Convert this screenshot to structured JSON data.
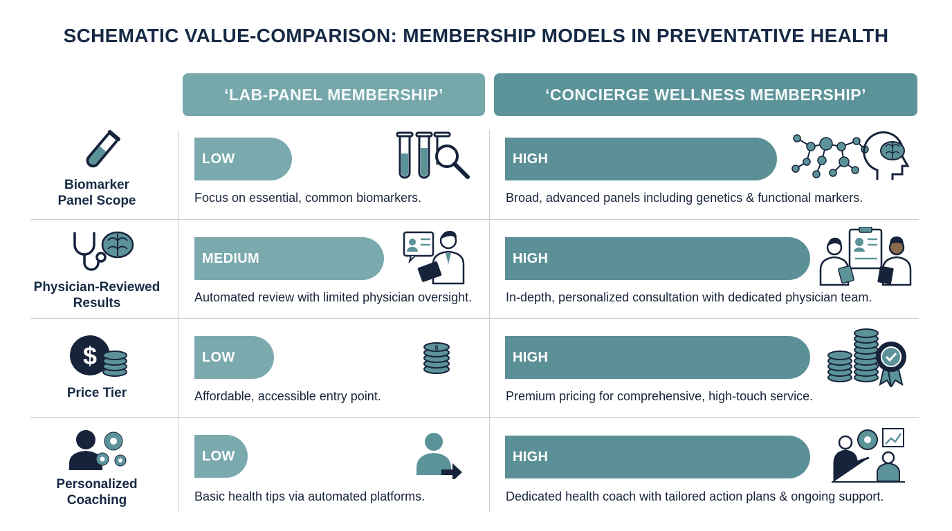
{
  "title": "SCHEMATIC VALUE-COMPARISON: MEMBERSHIP MODELS IN PREVENTATIVE HEALTH",
  "columns": {
    "lab": "‘LAB-PANEL MEMBERSHIP’",
    "concierge": "‘CONCIERGE WELLNESS MEMBERSHIP’"
  },
  "colors": {
    "lab_pill": "#7aa9ae",
    "concierge_pill": "#5a9096",
    "navy": "#16233b"
  },
  "rows": [
    {
      "label_lines": [
        "Biomarker",
        "Panel Scope"
      ],
      "icon": "test-tube-icon",
      "lab": {
        "level": "LOW",
        "desc": "Focus on essential, common biomarkers.",
        "icon": "test-tubes-magnifier-icon"
      },
      "concierge": {
        "level": "HIGH",
        "desc": "Broad, advanced panels including genetics & functional markers.",
        "icon": "network-brain-icon"
      }
    },
    {
      "label_lines": [
        "Physician-Reviewed",
        "Results"
      ],
      "icon": "stethoscope-brain-icon",
      "lab": {
        "level": "MEDIUM",
        "desc": "Automated review with limited physician oversight.",
        "icon": "physician-tablet-icon"
      },
      "concierge": {
        "level": "HIGH",
        "desc": "In-depth, personalized consultation with dedicated physician team.",
        "icon": "physician-team-icon"
      }
    },
    {
      "label_lines": [
        "Price Tier"
      ],
      "icon": "dollar-coins-icon",
      "lab": {
        "level": "LOW",
        "desc": "Affordable, accessible entry point.",
        "icon": "coin-stack-icon"
      },
      "concierge": {
        "level": "HIGH",
        "desc": "Premium pricing for comprehensive, high-touch service.",
        "icon": "coins-badge-icon"
      }
    },
    {
      "label_lines": [
        "Personalized",
        "Coaching"
      ],
      "icon": "person-gears-icon",
      "lab": {
        "level": "LOW",
        "desc": "Basic health tips via automated platforms.",
        "icon": "person-arrow-icon"
      },
      "concierge": {
        "level": "HIGH",
        "desc": "Dedicated health coach with tailored action plans & ongoing support.",
        "icon": "coach-meeting-icon"
      }
    }
  ]
}
